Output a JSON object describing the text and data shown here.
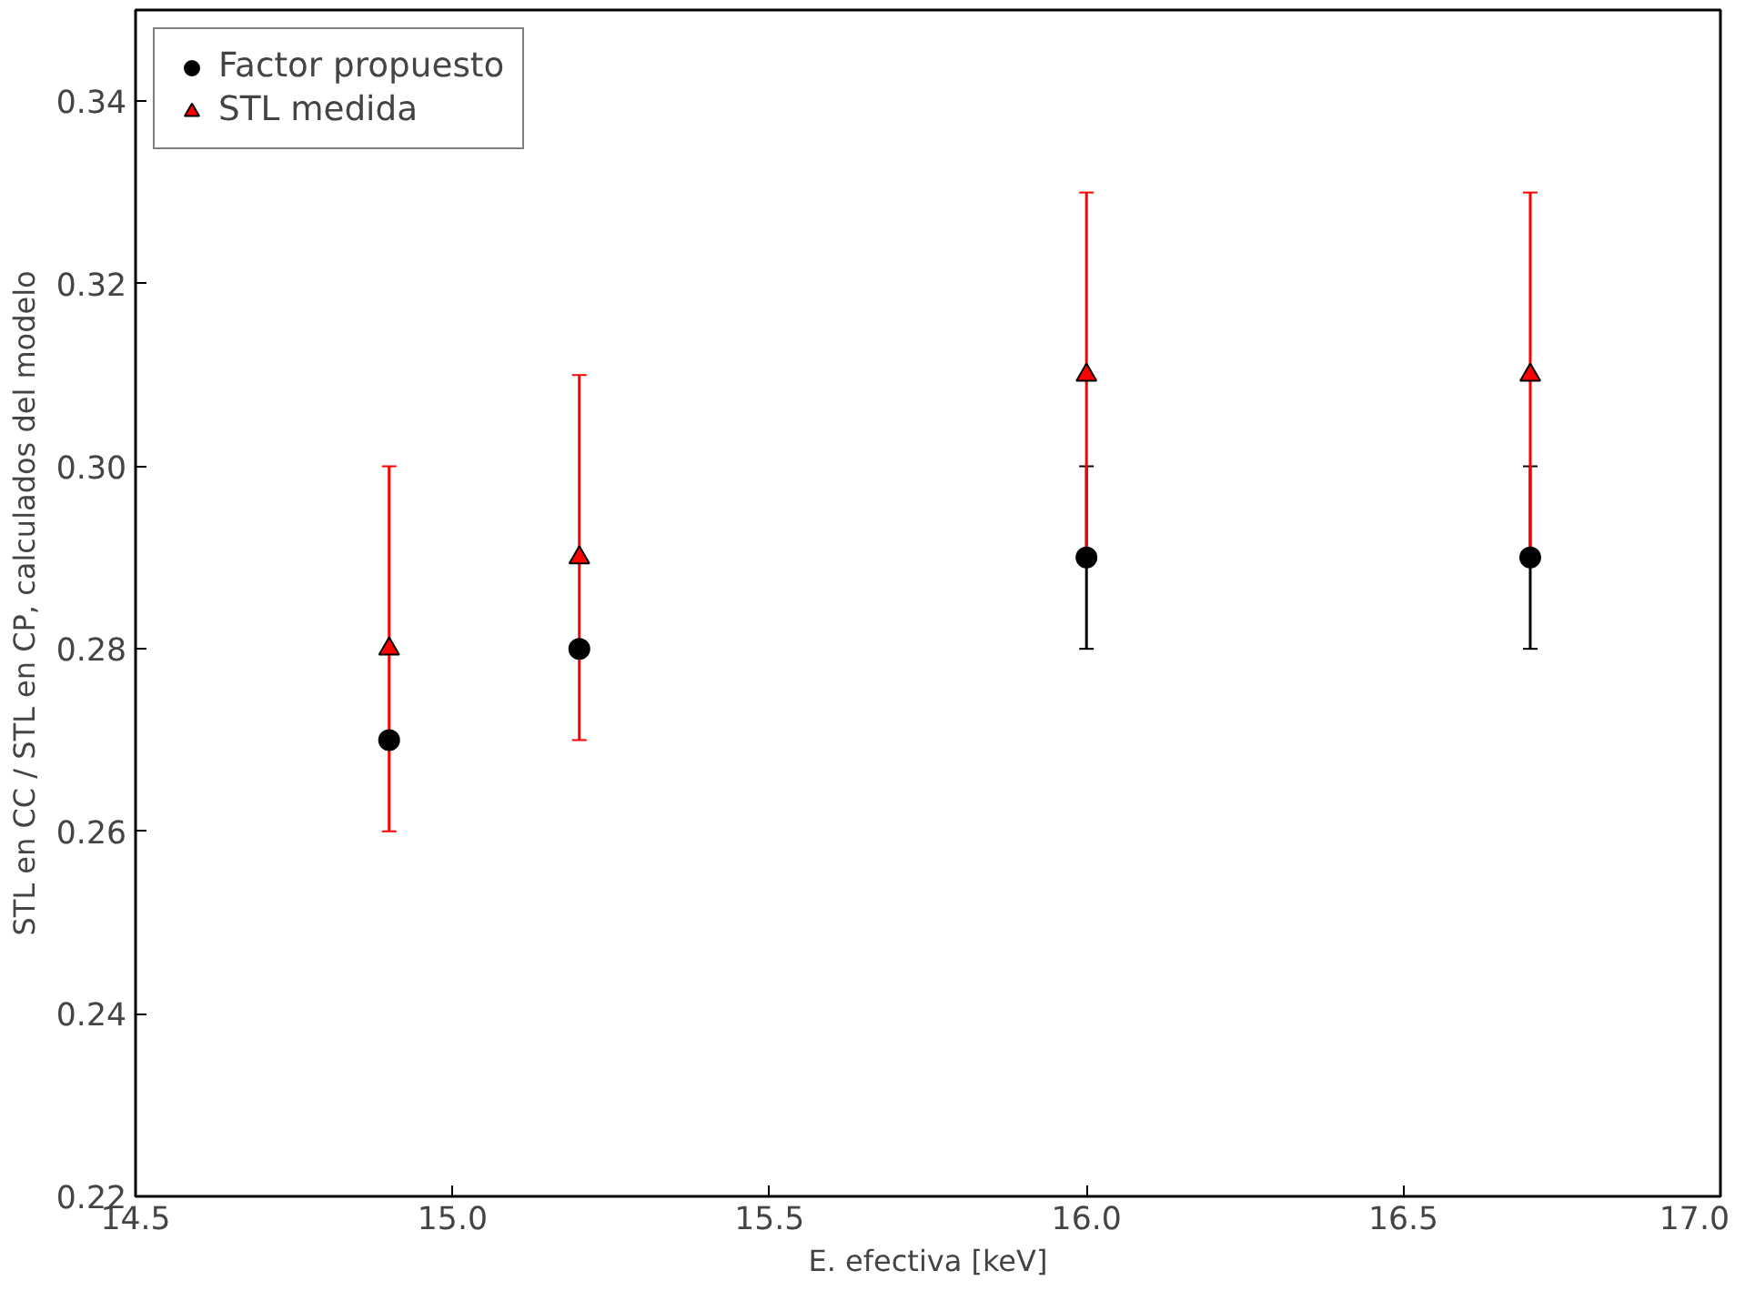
{
  "chart_data": {
    "type": "scatter",
    "xlabel": "E. efectiva [keV]",
    "ylabel": "STL en CC / STL en CP, calculados del modelo",
    "x": [
      14.9,
      15.2,
      16.0,
      16.7
    ],
    "series": [
      {
        "name": "Factor propuesto",
        "color": "#000000",
        "marker": "circle",
        "values": [
          0.27,
          0.28,
          0.29,
          0.29
        ],
        "errors": [
          null,
          null,
          0.01,
          0.01
        ]
      },
      {
        "name": "STL medida",
        "color": "#ff0000",
        "marker": "triangle",
        "values": [
          0.28,
          0.29,
          0.31,
          0.31
        ],
        "errors": [
          0.02,
          0.02,
          0.02,
          0.02
        ]
      }
    ],
    "xlim": [
      14.5,
      17.0
    ],
    "ylim": [
      0.22,
      0.35
    ],
    "xticks": [
      {
        "value": 14.5,
        "label": "14.5"
      },
      {
        "value": 15.0,
        "label": "15.0"
      },
      {
        "value": 15.5,
        "label": "15.5"
      },
      {
        "value": 16.0,
        "label": "16.0"
      },
      {
        "value": 16.5,
        "label": "16.5"
      },
      {
        "value": 17.0,
        "label": "17.0"
      }
    ],
    "yticks": [
      0.22,
      0.24,
      0.26,
      0.28,
      {
        "value": 0.3,
        "label": "0.30"
      },
      0.32,
      0.34
    ],
    "grid": false,
    "legend": "top left"
  }
}
